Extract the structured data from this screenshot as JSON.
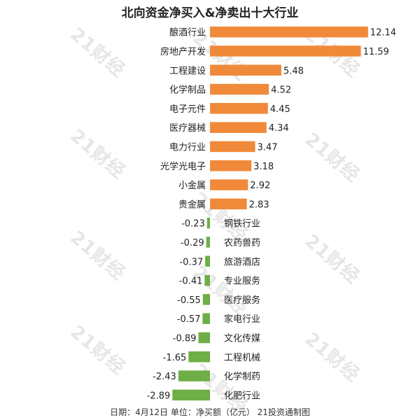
{
  "title": "北向资金净买入&净卖出十大行业",
  "footer": "日期：4月12日 单位：净买额（亿元） 21投资通制图",
  "watermark": "21财经",
  "colors": {
    "positive": "#F08A3A",
    "negative": "#6FAE46"
  },
  "chart_data": {
    "type": "bar",
    "orientation": "horizontal",
    "title": "北向资金净买入&净卖出十大行业",
    "categories": [
      "酿酒行业",
      "房地产开发",
      "工程建设",
      "化学制品",
      "电子元件",
      "医疗器械",
      "电力行业",
      "光学光电子",
      "小金属",
      "贵金属",
      "钢铁行业",
      "农药兽药",
      "旅游酒店",
      "专业服务",
      "医疗服务",
      "家电行业",
      "文化传媒",
      "工程机械",
      "化学制药",
      "化肥行业"
    ],
    "values": [
      12.14,
      11.59,
      5.48,
      4.52,
      4.45,
      4.34,
      3.47,
      3.18,
      2.92,
      2.83,
      -0.23,
      -0.29,
      -0.37,
      -0.41,
      -0.55,
      -0.57,
      -0.89,
      -1.65,
      -2.43,
      -2.89
    ],
    "value_labels": [
      "12.14",
      "11.59",
      "5.48",
      "4.52",
      "4.45",
      "4.34",
      "3.47",
      "3.18",
      "2.92",
      "2.83",
      "-0.23",
      "-0.29",
      "-0.37",
      "-0.41",
      "-0.55",
      "-0.57",
      "-0.89",
      "-1.65",
      "-2.43",
      "-2.89"
    ],
    "xlabel": "",
    "ylabel": "",
    "xlim": [
      -3.0,
      12.5
    ],
    "grid": false,
    "legend": "none"
  }
}
